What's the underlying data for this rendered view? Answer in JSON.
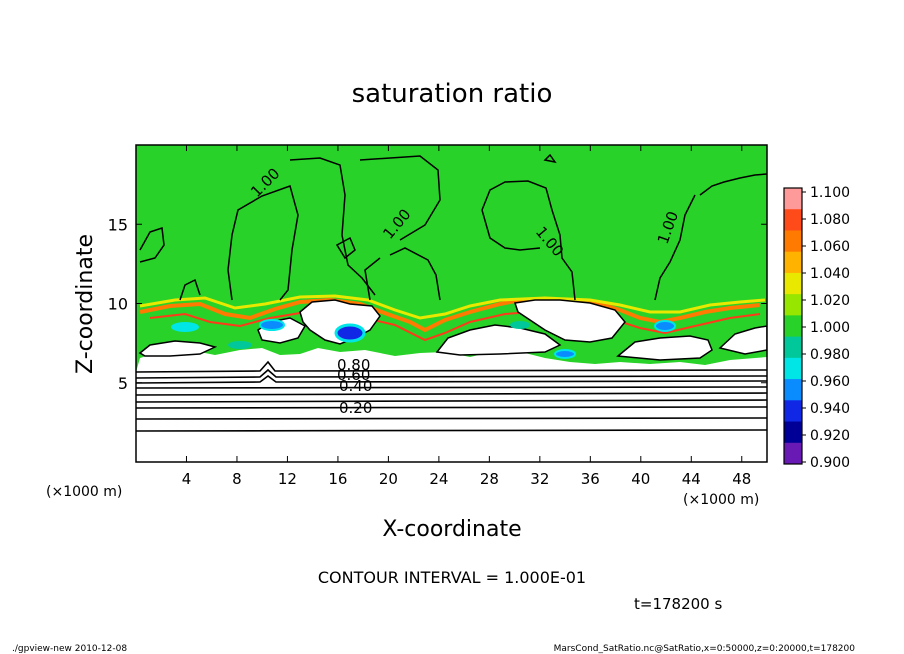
{
  "chart_data": {
    "type": "heatmap",
    "title": "saturation ratio",
    "xlabel": "X-coordinate",
    "ylabel": "Z-coordinate",
    "x_unit_left": "(×1000 m)",
    "x_unit_right": "(×1000 m)",
    "xlim": [
      0,
      50
    ],
    "ylim": [
      0,
      20
    ],
    "x_ticks": [
      4,
      8,
      12,
      16,
      20,
      24,
      28,
      32,
      36,
      40,
      44,
      48
    ],
    "y_ticks": [
      5,
      10,
      15
    ],
    "colorbar": {
      "levels": [
        "1.100",
        "1.080",
        "1.060",
        "1.040",
        "1.020",
        "1.000",
        "0.980",
        "0.960",
        "0.940",
        "0.920",
        "0.900"
      ],
      "colors": [
        "#ff9a9a",
        "#ff4a1a",
        "#ff7a00",
        "#ffb200",
        "#e8e800",
        "#96e600",
        "#28d228",
        "#00c89a",
        "#00e6e6",
        "#0a8cff",
        "#1028e6",
        "#000096",
        "#6a1ab4"
      ]
    },
    "background_color": "#28d228",
    "contour_labels": [
      "1.00",
      "1.00",
      "1.00",
      "1.00",
      "0.80",
      "0.60",
      "0.40",
      "0.20"
    ],
    "contour_interval_text": "CONTOUR INTERVAL = 1.000E-01",
    "time_text": "t=178200 s"
  },
  "footer": {
    "left": "./gpview-new   2010-12-08",
    "right": "MarsCond_SatRatio.nc@SatRatio,x=0:50000,z=0:20000,t=178200"
  }
}
